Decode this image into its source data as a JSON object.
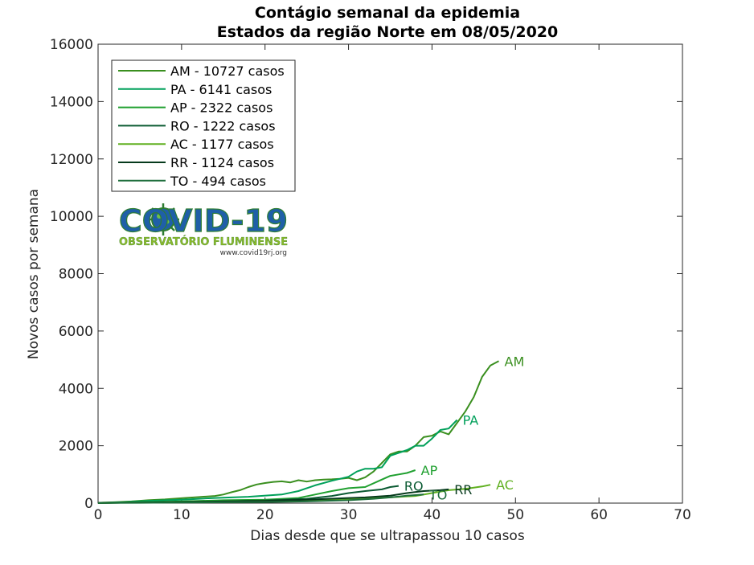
{
  "chart_data": {
    "type": "line",
    "title": "Contágio semanal da epidemia",
    "subtitle": "Estados da região Norte  em 08/05/2020",
    "xlabel": "Dias desde que se ultrapassou 10 casos",
    "ylabel": "Novos casos por semana",
    "xlim": [
      0,
      70
    ],
    "ylim": [
      0,
      16000
    ],
    "xticks": [
      "0",
      "10",
      "20",
      "30",
      "40",
      "50",
      "60",
      "70"
    ],
    "yticks": [
      "0",
      "2000",
      "4000",
      "6000",
      "8000",
      "10000",
      "12000",
      "14000",
      "16000"
    ],
    "grid": false,
    "legend_position": "top-left",
    "series": [
      {
        "name": "AM - 10727 casos",
        "label": "AM",
        "color": "#3a8f1f",
        "x": [
          0,
          2,
          4,
          6,
          8,
          10,
          12,
          14,
          15,
          16,
          17,
          18,
          19,
          20,
          21,
          22,
          23,
          24,
          25,
          26,
          27,
          28,
          29,
          30,
          31,
          32,
          33,
          34,
          35,
          36,
          37,
          38,
          39,
          40,
          41,
          42,
          43,
          44,
          45,
          46,
          47,
          48
        ],
        "y": [
          10,
          30,
          60,
          100,
          130,
          170,
          210,
          250,
          300,
          380,
          450,
          560,
          650,
          700,
          740,
          760,
          720,
          800,
          750,
          800,
          820,
          830,
          850,
          880,
          800,
          900,
          1100,
          1400,
          1700,
          1800,
          1800,
          2000,
          2300,
          2350,
          2500,
          2400,
          2800,
          3200,
          3700,
          4400,
          4800,
          4950
        ]
      },
      {
        "name": "PA - 6141 casos",
        "label": "PA",
        "color": "#00a05a",
        "x": [
          0,
          3,
          6,
          10,
          14,
          18,
          22,
          24,
          26,
          28,
          30,
          31,
          32,
          33,
          34,
          35,
          36,
          37,
          38,
          39,
          40,
          41,
          42,
          43
        ],
        "y": [
          5,
          30,
          80,
          120,
          180,
          220,
          300,
          420,
          620,
          780,
          920,
          1100,
          1200,
          1200,
          1250,
          1650,
          1750,
          1850,
          2000,
          2000,
          2250,
          2550,
          2600,
          2900
        ]
      },
      {
        "name": "AP - 2322 casos",
        "label": "AP",
        "color": "#20a030",
        "x": [
          0,
          5,
          10,
          15,
          20,
          24,
          26,
          28,
          30,
          32,
          34,
          35,
          36,
          37,
          38
        ],
        "y": [
          5,
          30,
          60,
          100,
          120,
          180,
          300,
          420,
          520,
          560,
          820,
          950,
          1000,
          1050,
          1150
        ]
      },
      {
        "name": "RO - 1222 casos",
        "label": "RO",
        "color": "#0a5a32",
        "x": [
          0,
          5,
          10,
          15,
          20,
          25,
          28,
          30,
          32,
          34,
          35,
          36
        ],
        "y": [
          5,
          20,
          40,
          60,
          90,
          150,
          250,
          350,
          420,
          480,
          560,
          600
        ]
      },
      {
        "name": "AC - 1177 casos",
        "label": "AC",
        "color": "#60b020",
        "x": [
          0,
          5,
          10,
          15,
          20,
          25,
          30,
          35,
          38,
          40,
          42,
          44,
          46,
          47
        ],
        "y": [
          5,
          20,
          40,
          60,
          80,
          100,
          150,
          200,
          250,
          350,
          450,
          500,
          580,
          640
        ]
      },
      {
        "name": "RR - 1124 casos",
        "label": "RR",
        "color": "#063a1c",
        "x": [
          0,
          5,
          10,
          15,
          20,
          25,
          30,
          32,
          35,
          37,
          39,
          41,
          42
        ],
        "y": [
          5,
          20,
          40,
          60,
          80,
          120,
          180,
          200,
          260,
          350,
          420,
          450,
          480
        ]
      },
      {
        "name": "TO - 494 casos",
        "label": "TO",
        "color": "#1e6e3c",
        "x": [
          0,
          5,
          10,
          15,
          20,
          25,
          30,
          33,
          35,
          37,
          39
        ],
        "y": [
          5,
          10,
          20,
          30,
          40,
          60,
          100,
          150,
          200,
          260,
          300
        ]
      }
    ]
  },
  "logo": {
    "main": "COVID-19",
    "sub": "OBSERVATÓRIO FLUMINENSE",
    "url": "www.covid19rj.org"
  }
}
